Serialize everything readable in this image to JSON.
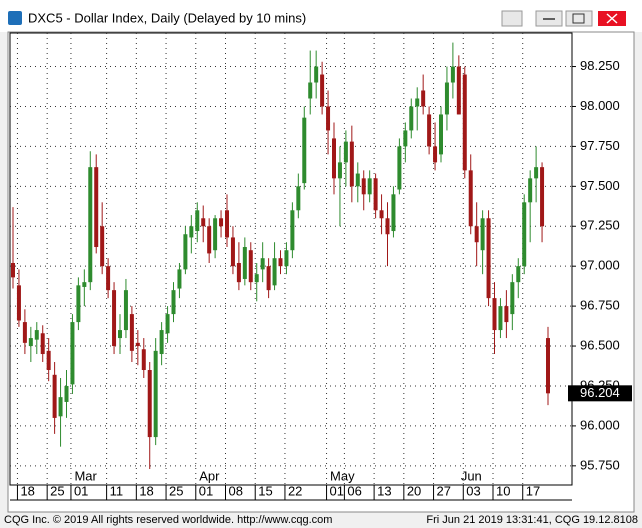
{
  "window_title": "DXC5 - Dollar Index, Daily (Delayed by 10 mins)",
  "chart_data": {
    "type": "candlestick",
    "categories": [
      null,
      "18",
      null,
      null,
      null,
      null,
      "25",
      null,
      null,
      null,
      "01",
      null,
      null,
      null,
      null,
      null,
      "11",
      null,
      null,
      null,
      null,
      "18",
      null,
      null,
      null,
      null,
      "25",
      null,
      null,
      null,
      null,
      "01",
      null,
      null,
      null,
      null,
      "08",
      null,
      null,
      null,
      null,
      "15",
      null,
      null,
      null,
      null,
      "22",
      null,
      null,
      null,
      null,
      null,
      null,
      "01",
      null,
      null,
      "06",
      null,
      null,
      null,
      null,
      "13",
      null,
      null,
      null,
      null,
      "20",
      null,
      null,
      null,
      null,
      "27",
      null,
      null,
      null,
      null,
      "03",
      null,
      null,
      null,
      null,
      "10",
      null,
      null,
      null,
      null,
      "17",
      null,
      null,
      null,
      null
    ],
    "months": [
      null,
      null,
      null,
      null,
      null,
      null,
      null,
      null,
      null,
      null,
      "Mar",
      null,
      null,
      null,
      null,
      null,
      null,
      null,
      null,
      null,
      null,
      null,
      null,
      null,
      null,
      null,
      null,
      null,
      null,
      null,
      null,
      "Apr",
      null,
      null,
      null,
      null,
      null,
      null,
      null,
      null,
      null,
      null,
      null,
      null,
      null,
      null,
      null,
      null,
      null,
      null,
      null,
      null,
      null,
      "May",
      null,
      null,
      null,
      null,
      null,
      null,
      null,
      null,
      null,
      null,
      null,
      null,
      null,
      null,
      null,
      null,
      null,
      null,
      null,
      null,
      null,
      "Jun",
      null,
      null,
      null,
      null,
      null,
      null,
      null,
      null,
      null,
      null,
      null,
      null,
      null,
      null
    ],
    "open": [
      97.02,
      96.88,
      96.65,
      96.5,
      96.54,
      96.58,
      96.47,
      96.32,
      96.06,
      96.15,
      96.26,
      96.65,
      96.87,
      96.9,
      97.62,
      97.25,
      97.0,
      96.85,
      96.55,
      96.6,
      96.7,
      96.52,
      96.48,
      96.35,
      95.93,
      96.45,
      96.58,
      96.7,
      96.86,
      96.98,
      97.18,
      97.22,
      97.3,
      97.25,
      97.1,
      97.3,
      97.35,
      97.18,
      97.02,
      96.92,
      97.1,
      96.9,
      96.98,
      97.0,
      96.88,
      97.05,
      97.0,
      97.1,
      97.35,
      97.52,
      98.05,
      98.15,
      98.2,
      98.0,
      97.8,
      97.55,
      97.65,
      97.78,
      97.5,
      97.55,
      97.45,
      97.55,
      97.35,
      97.3,
      97.22,
      97.48,
      97.75,
      97.85,
      98.0,
      98.1,
      97.95,
      97.75,
      97.7,
      97.95,
      98.15,
      98.25,
      98.2,
      97.6,
      97.25,
      97.1,
      97.3,
      96.8,
      96.6,
      96.75,
      96.7,
      96.9,
      97.0,
      97.4,
      97.55,
      97.62,
      96.55
    ],
    "high": [
      97.37,
      96.98,
      96.73,
      96.62,
      96.65,
      96.63,
      96.55,
      96.4,
      96.3,
      96.35,
      96.7,
      96.93,
      96.98,
      97.72,
      97.7,
      97.4,
      97.05,
      96.9,
      96.7,
      96.92,
      96.75,
      96.6,
      96.55,
      96.4,
      96.55,
      96.65,
      96.75,
      96.9,
      97.02,
      97.25,
      97.32,
      97.4,
      97.38,
      97.3,
      97.32,
      97.35,
      97.45,
      97.25,
      97.15,
      97.18,
      97.15,
      97.02,
      97.15,
      97.05,
      97.15,
      97.1,
      97.15,
      97.4,
      97.58,
      98.0,
      98.35,
      98.35,
      98.28,
      98.1,
      97.9,
      97.75,
      97.85,
      97.88,
      97.65,
      97.6,
      97.6,
      97.58,
      97.45,
      97.4,
      97.5,
      97.8,
      97.9,
      98.05,
      98.12,
      98.2,
      98.0,
      97.9,
      98.0,
      98.25,
      98.4,
      98.32,
      98.25,
      97.7,
      97.4,
      97.35,
      97.35,
      96.9,
      96.8,
      96.85,
      96.95,
      97.05,
      97.45,
      97.6,
      97.75,
      97.65,
      96.62
    ],
    "low": [
      96.86,
      96.62,
      96.45,
      96.4,
      96.45,
      96.4,
      96.28,
      95.95,
      95.87,
      96.05,
      96.2,
      96.6,
      96.75,
      96.85,
      97.08,
      96.95,
      96.8,
      96.45,
      96.45,
      96.55,
      96.4,
      96.38,
      96.3,
      95.73,
      95.88,
      96.38,
      96.52,
      96.65,
      96.8,
      96.95,
      97.08,
      97.15,
      97.15,
      97.02,
      97.05,
      97.18,
      97.12,
      96.95,
      96.85,
      96.88,
      96.85,
      96.78,
      96.9,
      96.8,
      96.85,
      96.95,
      96.95,
      97.05,
      97.3,
      97.48,
      97.95,
      98.05,
      97.95,
      97.7,
      97.45,
      97.25,
      97.5,
      97.4,
      97.4,
      97.35,
      97.4,
      97.3,
      97.2,
      97.0,
      97.18,
      97.45,
      97.65,
      97.8,
      97.85,
      97.95,
      97.7,
      97.6,
      97.65,
      97.85,
      98.05,
      97.95,
      97.55,
      97.2,
      97.0,
      96.95,
      96.75,
      96.45,
      96.55,
      96.55,
      96.6,
      96.8,
      96.95,
      97.15,
      97.4,
      97.15,
      96.13
    ],
    "close": [
      96.93,
      96.66,
      96.52,
      96.55,
      96.6,
      96.45,
      96.35,
      96.05,
      96.18,
      96.25,
      96.65,
      96.88,
      96.9,
      97.62,
      97.12,
      97.0,
      96.85,
      96.5,
      96.6,
      96.85,
      96.47,
      96.5,
      96.35,
      95.93,
      96.47,
      96.6,
      96.7,
      96.85,
      96.98,
      97.2,
      97.25,
      97.35,
      97.25,
      97.08,
      97.3,
      97.25,
      97.18,
      97.0,
      96.9,
      97.12,
      96.9,
      96.95,
      97.05,
      96.85,
      97.05,
      97.0,
      97.1,
      97.35,
      97.5,
      97.93,
      98.15,
      98.25,
      98.0,
      97.85,
      97.55,
      97.65,
      97.78,
      97.5,
      97.58,
      97.45,
      97.55,
      97.35,
      97.3,
      97.2,
      97.45,
      97.75,
      97.85,
      98.0,
      98.05,
      98.0,
      97.75,
      97.65,
      97.95,
      98.15,
      98.25,
      97.95,
      97.6,
      97.25,
      97.15,
      97.3,
      96.8,
      96.6,
      96.75,
      96.65,
      96.9,
      97.0,
      97.4,
      97.55,
      97.62,
      97.25,
      96.204
    ],
    "up_color": "#2e8b2e",
    "down_color": "#a01818",
    "ylim": [
      95.63,
      98.46
    ],
    "yticks": [
      {
        "value": 95.75,
        "label": "95.750"
      },
      {
        "value": 96,
        "label": "96.000"
      },
      {
        "value": 96.25,
        "label": "96.250"
      },
      {
        "value": 96.5,
        "label": "96.500"
      },
      {
        "value": 96.75,
        "label": "96.750"
      },
      {
        "value": 97,
        "label": "97.000"
      },
      {
        "value": 97.25,
        "label": "97.250"
      },
      {
        "value": 97.5,
        "label": "97.500"
      },
      {
        "value": 97.75,
        "label": "97.750"
      },
      {
        "value": 98,
        "label": "98.000"
      },
      {
        "value": 98.25,
        "label": "98.250"
      }
    ],
    "grid": true
  },
  "footer": {
    "left": "CQG Inc. © 2019 All rights reserved worldwide. http://www.cqg.com",
    "right": "Fri Jun 21 2019 13:31:41, CQG 19.12.8108"
  }
}
